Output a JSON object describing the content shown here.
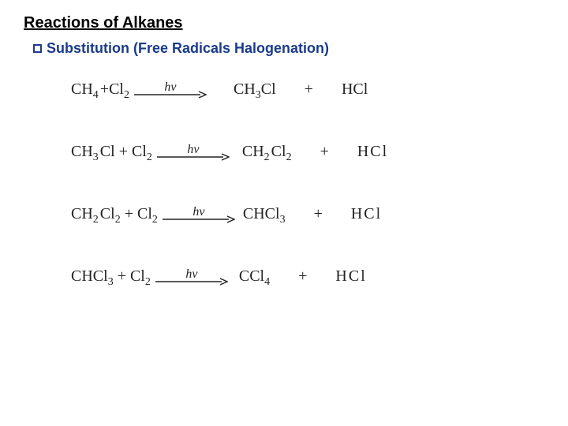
{
  "title": "Reactions of Alkanes",
  "subtitle": "Substitution (Free Radicals Halogenation)",
  "colors": {
    "subtitle": "#1a3b8b",
    "bullet_border": "#1a3b8b",
    "text": "#000000",
    "eq_color": "#222222",
    "arrow_stroke": "#222222"
  },
  "arrow": {
    "width": 92,
    "height": 10,
    "stroke_width": 1.4
  },
  "condition": "hv",
  "equations": [
    {
      "lhs": [
        {
          "t": "CH"
        },
        {
          "t": "4",
          "sub": true
        },
        {
          "t": "+Cl",
          "pad_left": 2
        },
        {
          "t": "2",
          "sub": true
        }
      ],
      "rhs1": [
        {
          "t": "CH",
          "pad_left": 24
        },
        {
          "t": "3",
          "sub": true
        },
        {
          "t": "Cl"
        }
      ],
      "rhs2": [
        {
          "t": "HCl"
        }
      ]
    },
    {
      "lhs": [
        {
          "t": "CH"
        },
        {
          "t": "3",
          "sub": true
        },
        {
          "t": "Cl + Cl",
          "pad_left": 2
        },
        {
          "t": "2",
          "sub": true
        }
      ],
      "rhs1": [
        {
          "t": "CH",
          "pad_left": 6
        },
        {
          "t": "2",
          "sub": true
        },
        {
          "t": "Cl",
          "pad_left": 2
        },
        {
          "t": "2",
          "sub": true
        }
      ],
      "rhs2": [
        {
          "t": "HCl",
          "spaced": true
        }
      ]
    },
    {
      "lhs": [
        {
          "t": "CH"
        },
        {
          "t": "2",
          "sub": true
        },
        {
          "t": "Cl",
          "pad_left": 2
        },
        {
          "t": "2",
          "sub": true
        },
        {
          "t": " + Cl"
        },
        {
          "t": "2",
          "sub": true
        }
      ],
      "rhs1": [
        {
          "t": "CHCl",
          "pad_left": 0
        },
        {
          "t": "3",
          "sub": true
        }
      ],
      "rhs2": [
        {
          "t": "HCl",
          "spaced": true
        }
      ]
    },
    {
      "lhs": [
        {
          "t": "CHCl"
        },
        {
          "t": "3",
          "sub": true
        },
        {
          "t": " + Cl"
        },
        {
          "t": "2",
          "sub": true
        }
      ],
      "rhs1": [
        {
          "t": "CCl",
          "pad_left": 4
        },
        {
          "t": "4",
          "sub": true
        }
      ],
      "rhs2": [
        {
          "t": "HCl",
          "spaced": true
        }
      ]
    }
  ]
}
